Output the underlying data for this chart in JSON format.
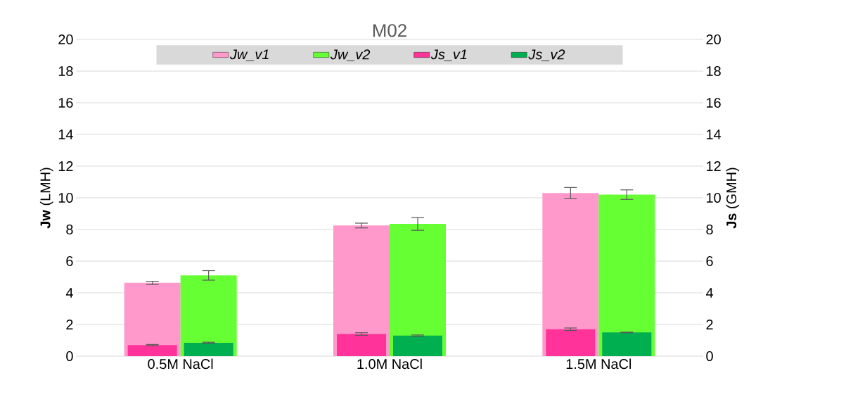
{
  "chart_data": {
    "type": "bar",
    "title": "M02",
    "ylabel": "**Jw** (LMH)",
    "y2label": "**Js** (GMH)",
    "categories": [
      "0.5M NaCl",
      "1.0M NaCl",
      "1.5M NaCl"
    ],
    "series": [
      {
        "name": "Jw_v1",
        "color": "#ff99cc",
        "values": [
          4.63,
          8.25,
          10.3
        ],
        "errors": [
          0.1,
          0.15,
          0.35
        ]
      },
      {
        "name": "Jw_v2",
        "color": "#66ff33",
        "values": [
          5.1,
          8.35,
          10.2
        ],
        "errors": [
          0.3,
          0.4,
          0.3
        ]
      },
      {
        "name": "Js_v1",
        "color": "#ff3399",
        "axis": "y2",
        "values": [
          0.7,
          1.4,
          1.7
        ],
        "errors": [
          0.04,
          0.08,
          0.08
        ]
      },
      {
        "name": "Js_v2",
        "color": "#00b050",
        "axis": "y2",
        "values": [
          0.85,
          1.3,
          1.5
        ],
        "errors": [
          0.03,
          0.04,
          0.02
        ]
      }
    ],
    "ylim": [
      0,
      20
    ],
    "yticks": [
      0,
      2,
      4,
      6,
      8,
      10,
      12,
      14,
      16,
      18,
      20
    ],
    "y2lim": [
      0,
      20
    ],
    "y2ticks": [
      0,
      2,
      4,
      6,
      8,
      10,
      12,
      14,
      16,
      18,
      20
    ],
    "grid": "y",
    "legend": "top"
  }
}
